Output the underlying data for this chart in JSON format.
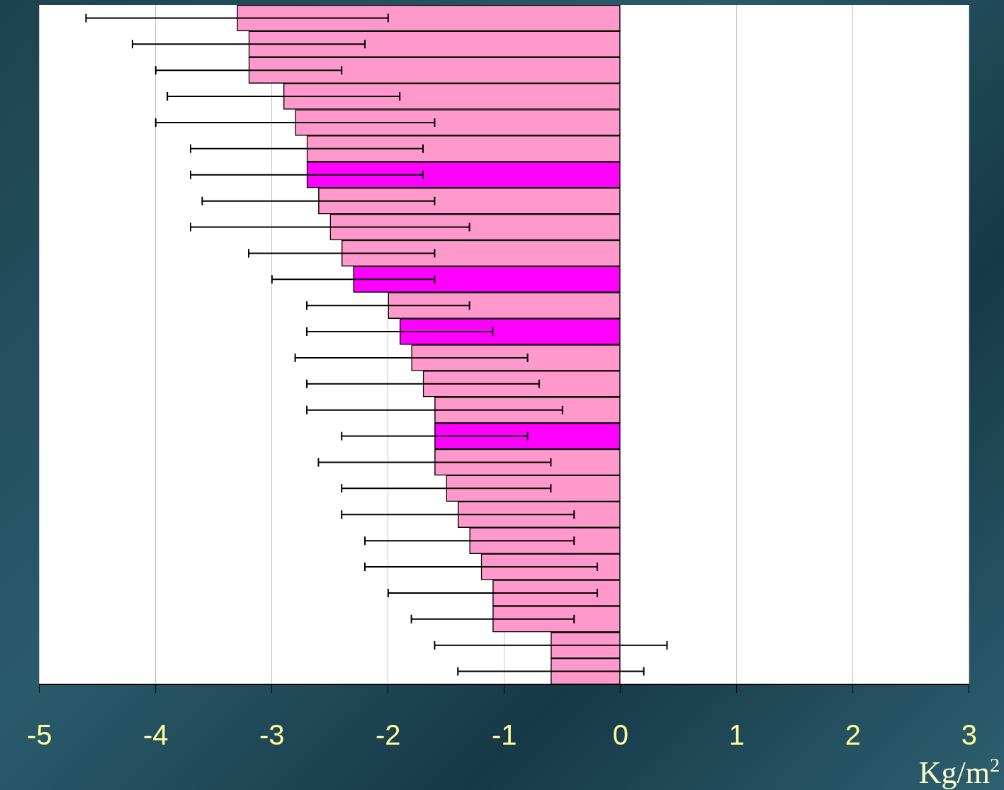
{
  "chart_data": {
    "type": "bar",
    "orientation": "horizontal",
    "xlabel": "Kg/m$^{2}$",
    "categories": [
      null,
      null,
      null,
      null,
      null,
      null,
      null,
      null,
      null,
      null,
      null,
      null,
      null,
      null,
      null,
      null,
      null,
      null,
      null,
      null,
      null,
      null,
      null,
      null,
      null,
      null
    ],
    "values": [
      -3.3,
      -3.2,
      -3.2,
      -2.9,
      -2.8,
      -2.7,
      -2.7,
      -2.6,
      -2.5,
      -2.4,
      -2.3,
      -2.0,
      -1.9,
      -1.8,
      -1.7,
      -1.6,
      -1.6,
      -1.6,
      -1.5,
      -1.4,
      -1.3,
      -1.2,
      -1.1,
      -1.1,
      -0.6,
      -0.6
    ],
    "colors": [
      "#ff99cc",
      "#ff99cc",
      "#ff99cc",
      "#ff99cc",
      "#ff99cc",
      "#ff99cc",
      "#ff00ff",
      "#ff99cc",
      "#ff99cc",
      "#ff99cc",
      "#ff00ff",
      "#ff99cc",
      "#ff00ff",
      "#ff99cc",
      "#ff99cc",
      "#ff99cc",
      "#ff00ff",
      "#ff99cc",
      "#ff99cc",
      "#ff99cc",
      "#ff99cc",
      "#ff99cc",
      "#ff99cc",
      "#ff99cc",
      "#ff99cc",
      "#ff99cc"
    ],
    "errors": [
      [
        -4.6,
        -2.0
      ],
      [
        -4.2,
        -2.2
      ],
      [
        -4.0,
        -2.4
      ],
      [
        -3.9,
        -1.9
      ],
      [
        -4.0,
        -1.6
      ],
      [
        -3.7,
        -1.7
      ],
      [
        -3.7,
        -1.7
      ],
      [
        -3.6,
        -1.6
      ],
      [
        -3.7,
        -1.3
      ],
      [
        -3.2,
        -1.6
      ],
      [
        -3.0,
        -1.6
      ],
      [
        -2.7,
        -1.3
      ],
      [
        -2.7,
        -1.1
      ],
      [
        -2.8,
        -0.8
      ],
      [
        -2.7,
        -0.7
      ],
      [
        -2.7,
        -0.5
      ],
      [
        -2.4,
        -0.8
      ],
      [
        -2.6,
        -0.6
      ],
      [
        -2.4,
        -0.6
      ],
      [
        -2.4,
        -0.4
      ],
      [
        -2.2,
        -0.4
      ],
      [
        -2.2,
        -0.2
      ],
      [
        -2.0,
        -0.2
      ],
      [
        -1.8,
        -0.4
      ],
      [
        -1.6,
        0.4
      ],
      [
        -1.4,
        0.2
      ]
    ],
    "xlim": [
      -5,
      3
    ],
    "xticks": [
      -5,
      -4,
      -3,
      -2,
      -1,
      0,
      1,
      2,
      3
    ],
    "grid": "x",
    "legend": false
  }
}
